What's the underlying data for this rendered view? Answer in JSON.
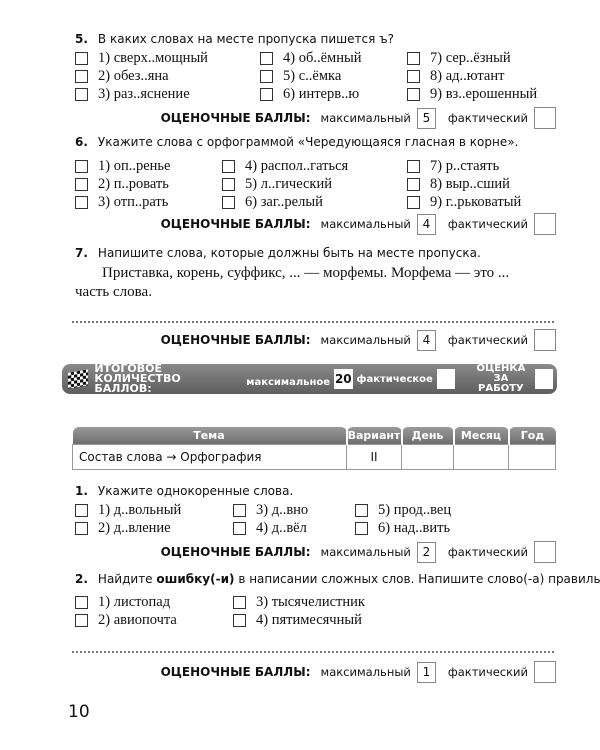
{
  "q5": {
    "num": "5.",
    "text": "В каких словах на месте пропуска пишется ъ?",
    "options": [
      "1) сверх..мощный",
      "2) обез..яна",
      "3) раз..яснение",
      "4) об..ёмный",
      "5) с..ёмка",
      "6) интерв..ю",
      "7) сер..ёзный",
      "8) ад..ютант",
      "9) вз..ерошенный"
    ],
    "max": "5"
  },
  "q6": {
    "num": "6.",
    "text": "Укажите слова с орфограммой «Чередующаяся гласная в корне».",
    "options": [
      "1) оп..ренье",
      "2) п..ровать",
      "3) отп..рать",
      "4) распол..гаться",
      "5) л..гический",
      "6) заг..релый",
      "7) р..стаять",
      "8) выр..сший",
      "9) г..рьковатый"
    ],
    "max": "4"
  },
  "q7": {
    "num": "7.",
    "text": "Напишите слова, которые должны быть на месте пропуска.",
    "line1": "Приставка, корень, суффикс, ... — морфемы. Морфема — это ...",
    "line2": "часть слова.",
    "max": "4"
  },
  "score": {
    "title": "ОЦЕНОЧНЫЕ БАЛЛЫ:",
    "max_label": "максимальный",
    "fact_label": "фактический"
  },
  "total": {
    "title1": "ИТОГОВОЕ КОЛИЧЕСТВО",
    "title2": "БАЛЛОВ:",
    "max_label": "максимальное",
    "max": "20",
    "fact_label": "фактическое",
    "grade1": "ОЦЕНКА",
    "grade2": "ЗА РАБОТУ"
  },
  "table": {
    "headers": [
      "Тема",
      "Вариант",
      "День",
      "Месяц",
      "Год"
    ],
    "row": [
      "Состав слова → Орфография",
      "II",
      "",
      "",
      ""
    ]
  },
  "b1": {
    "num": "1.",
    "text": "Укажите однокоренные слова.",
    "options": [
      "1) д..вольный",
      "2) д..вление",
      "3) д..вно",
      "4) д..вёл",
      "5) прод..вец",
      "6) над..вить"
    ],
    "max": "2"
  },
  "b2": {
    "num": "2.",
    "text_a": "Найдите ",
    "text_b": "ошибку(-и)",
    "text_c": " в написании сложных слов. Напишите слово(-а) правильно.",
    "options": [
      "1) листопад",
      "2) авиопочта",
      "3) тысячелистник",
      "4) пятимесячный"
    ],
    "max": "1"
  },
  "page_number": "10"
}
